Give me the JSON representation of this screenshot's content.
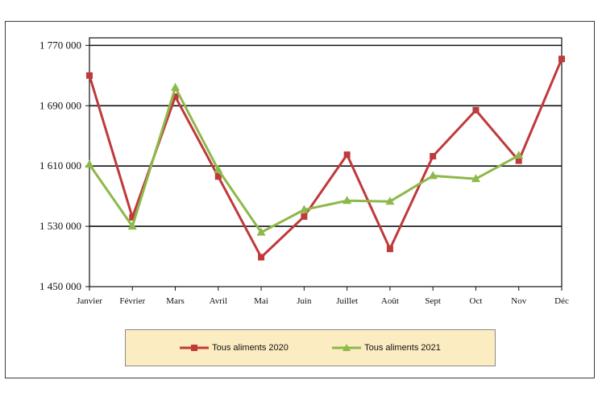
{
  "chart_data": {
    "type": "line",
    "categories": [
      "Janvier",
      "Février",
      "Mars",
      "Avril",
      "Mai",
      "Juin",
      "Juillet",
      "Août",
      "Sept",
      "Oct",
      "Nov",
      "Déc"
    ],
    "series": [
      {
        "name": "Tous aliments 2020",
        "color": "#c0393b",
        "marker": "square",
        "values": [
          1730000,
          1542000,
          1702000,
          1596000,
          1489000,
          1543000,
          1625000,
          1500000,
          1623000,
          1684000,
          1617000,
          1752000
        ]
      },
      {
        "name": "Tous aliments 2021",
        "color": "#8db84a",
        "marker": "triangle",
        "values": [
          1612000,
          1530000,
          1714000,
          1605000,
          1522000,
          1552000,
          1564000,
          1563000,
          1597000,
          1593000,
          1624000,
          null
        ]
      }
    ],
    "y_ticks": [
      {
        "value": 1770000,
        "label": "1 770 000"
      },
      {
        "value": 1690000,
        "label": "1 690 000"
      },
      {
        "value": 1610000,
        "label": "1 610 000"
      },
      {
        "value": 1530000,
        "label": "1 530 000"
      },
      {
        "value": 1450000,
        "label": "1 450 000"
      }
    ],
    "ylim": [
      1450000,
      1780000
    ],
    "grid": true,
    "legend_position": "bottom"
  }
}
